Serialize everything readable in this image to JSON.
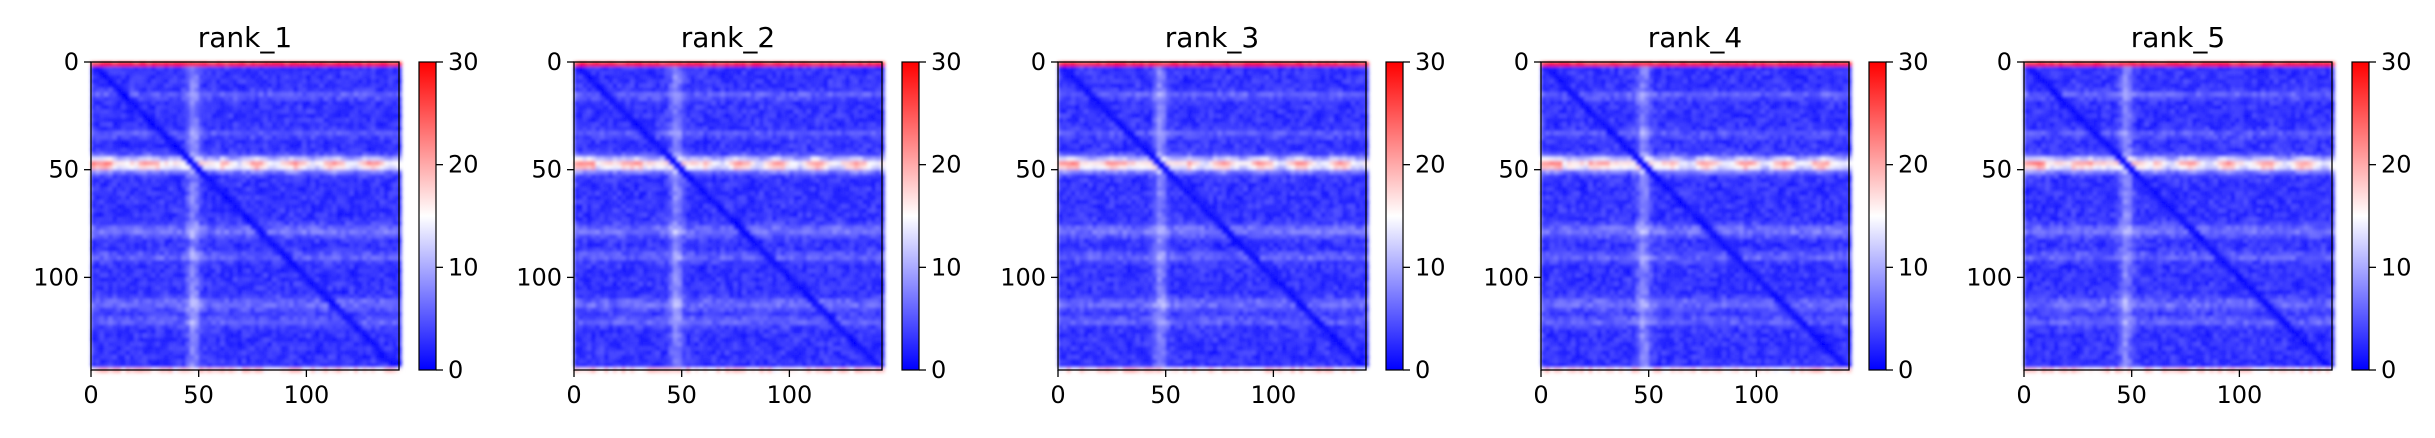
{
  "chart_data": [
    {
      "type": "heatmap",
      "title": "rank_1",
      "x_ticks": [
        "0",
        "50",
        "100"
      ],
      "y_ticks": [
        "0",
        "50",
        "100"
      ],
      "colorbar": {
        "min": 0,
        "max": 30,
        "ticks": [
          "0",
          "10",
          "20",
          "30"
        ],
        "colormap": "bwr"
      },
      "xlim": [
        0,
        143
      ],
      "ylim": [
        143,
        0
      ]
    },
    {
      "type": "heatmap",
      "title": "rank_2",
      "x_ticks": [
        "0",
        "50",
        "100"
      ],
      "y_ticks": [
        "0",
        "50",
        "100"
      ],
      "colorbar": {
        "min": 0,
        "max": 30,
        "ticks": [
          "0",
          "10",
          "20",
          "30"
        ],
        "colormap": "bwr"
      },
      "xlim": [
        0,
        143
      ],
      "ylim": [
        143,
        0
      ]
    },
    {
      "type": "heatmap",
      "title": "rank_3",
      "x_ticks": [
        "0",
        "50",
        "100"
      ],
      "y_ticks": [
        "0",
        "50",
        "100"
      ],
      "colorbar": {
        "min": 0,
        "max": 30,
        "ticks": [
          "0",
          "10",
          "20",
          "30"
        ],
        "colormap": "bwr"
      },
      "xlim": [
        0,
        143
      ],
      "ylim": [
        143,
        0
      ]
    },
    {
      "type": "heatmap",
      "title": "rank_4",
      "x_ticks": [
        "0",
        "50",
        "100"
      ],
      "y_ticks": [
        "0",
        "50",
        "100"
      ],
      "colorbar": {
        "min": 0,
        "max": 30,
        "ticks": [
          "0",
          "10",
          "20",
          "30"
        ],
        "colormap": "bwr"
      },
      "xlim": [
        0,
        143
      ],
      "ylim": [
        143,
        0
      ]
    },
    {
      "type": "heatmap",
      "title": "rank_5",
      "x_ticks": [
        "0",
        "50",
        "100"
      ],
      "y_ticks": [
        "0",
        "50",
        "100"
      ],
      "colorbar": {
        "min": 0,
        "max": 30,
        "ticks": [
          "0",
          "10",
          "20",
          "30"
        ],
        "colormap": "bwr"
      },
      "xlim": [
        0,
        143
      ],
      "ylim": [
        143,
        0
      ]
    }
  ]
}
